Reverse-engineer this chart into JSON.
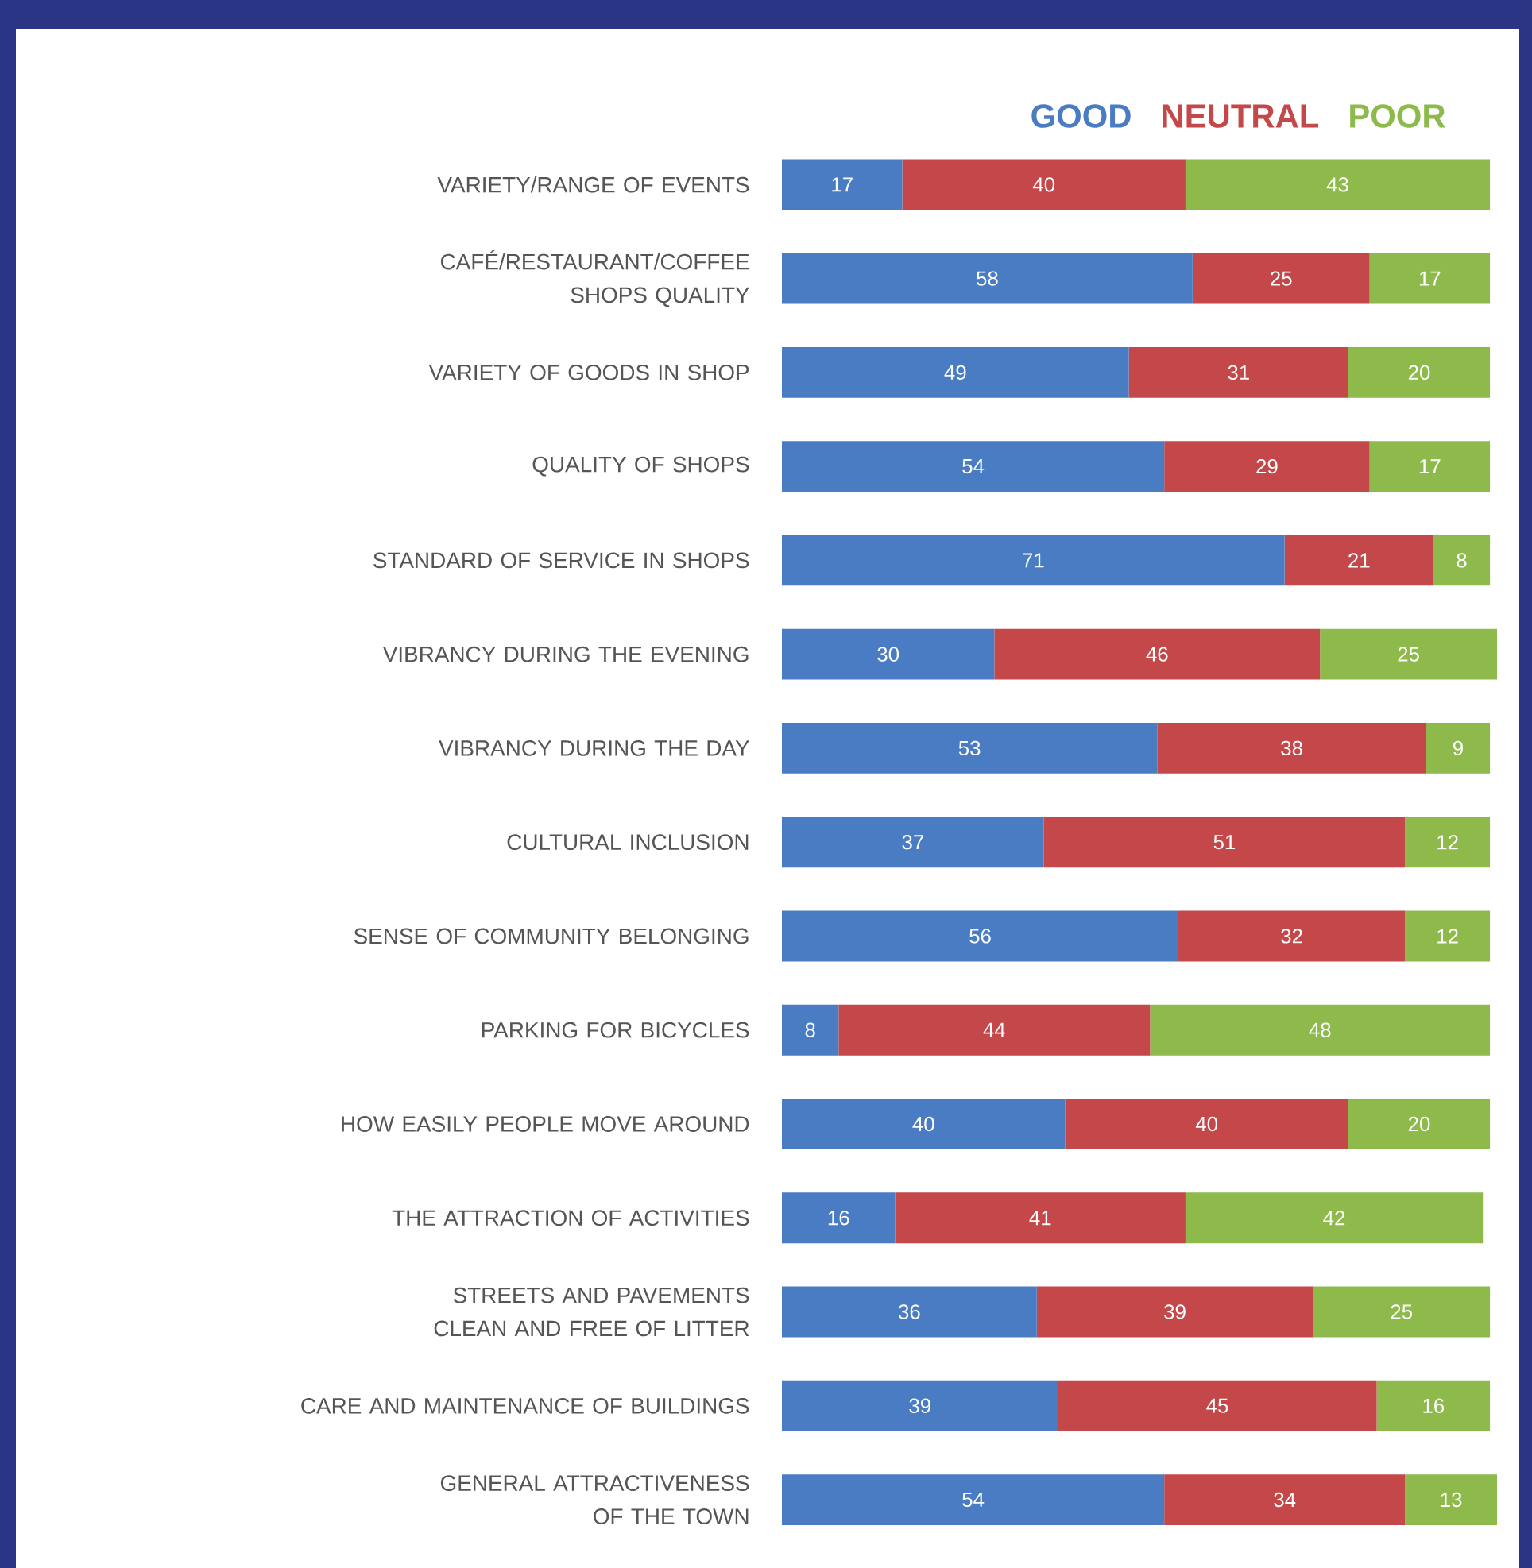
{
  "chart_data": {
    "type": "bar",
    "orientation": "horizontal",
    "stacked": true,
    "data_labels": true,
    "legend": "top right",
    "tick_labels": "y",
    "categories": [
      "VARIETY/RANGE OF EVENTS",
      "CAFÉ/RESTAURANT/COFFEE SHOPS QUALITY",
      "VARIETY OF GOODS IN SHOP",
      "QUALITY OF SHOPS",
      "STANDARD OF SERVICE IN SHOPS",
      "VIBRANCY DURING THE EVENING",
      "VIBRANCY DURING THE DAY",
      "CULTURAL INCLUSION",
      "SENSE OF COMMUNITY BELONGING",
      "PARKING FOR BICYCLES",
      "HOW EASILY PEOPLE MOVE AROUND",
      "THE ATTRACTION OF ACTIVITIES",
      "STREETS AND PAVEMENTS CLEAN AND FREE OF LITTER",
      "CARE AND MAINTENANCE OF BUILDINGS",
      "GENERAL ATTRACTIVENESS OF THE TOWN"
    ],
    "series": [
      {
        "name": "GOOD",
        "color": "#4a7cc4",
        "values": [
          17,
          58,
          49,
          54,
          71,
          30,
          53,
          37,
          56,
          8,
          40,
          16,
          36,
          39,
          54
        ]
      },
      {
        "name": "NEUTRAL",
        "color": "#c4474a",
        "values": [
          40,
          25,
          31,
          29,
          21,
          46,
          38,
          51,
          32,
          44,
          40,
          41,
          39,
          45,
          34
        ]
      },
      {
        "name": "POOR",
        "color": "#8dba4a",
        "values": [
          43,
          17,
          20,
          17,
          8,
          25,
          9,
          12,
          12,
          48,
          20,
          42,
          25,
          16,
          13
        ]
      }
    ]
  }
}
